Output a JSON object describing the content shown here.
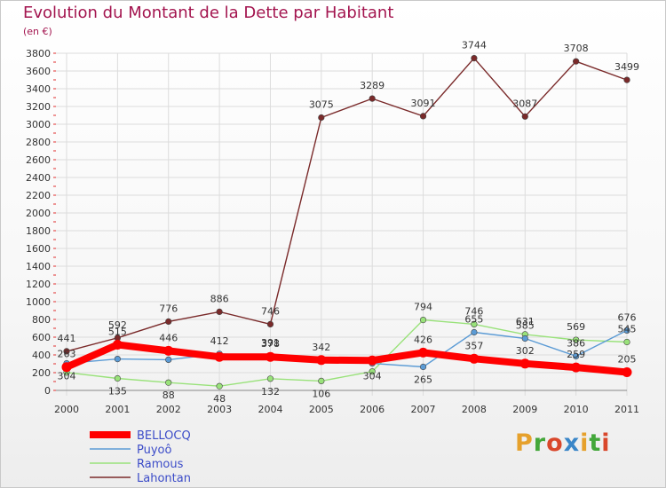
{
  "header": {
    "title": "Evolution du Montant de la Dette par Habitant",
    "subtitle": "(en €)"
  },
  "logo": {
    "text": "Proxiti",
    "colors": [
      "#e6a12c",
      "#43a73a",
      "#d9472b",
      "#3a86c8"
    ]
  },
  "chart_data": {
    "type": "line",
    "title": "Evolution du Montant de la Dette par Habitant",
    "ylabel": "(en €)",
    "xlabel": "",
    "ylim": [
      0,
      3800
    ],
    "ytick_step": 200,
    "grid": true,
    "legend_position": "bottom-left",
    "categories": [
      "2000",
      "2001",
      "2002",
      "2003",
      "2004",
      "2005",
      "2006",
      "2007",
      "2008",
      "2009",
      "2010",
      "2011"
    ],
    "series": [
      {
        "name": "BELLOCQ",
        "color": "#ff0000",
        "values": [
          263,
          515,
          446,
          378,
          378,
          342,
          338,
          426,
          357,
          302,
          259,
          205
        ],
        "labels": [
          "263",
          "515",
          "446",
          "",
          "378",
          "342",
          "",
          "426",
          "357",
          "302",
          "259",
          "205"
        ]
      },
      {
        "name": "Puyoô",
        "color": "#5b9bd5",
        "values": [
          304,
          354,
          346,
          412,
          391,
          334,
          304,
          265,
          655,
          585,
          386,
          676
        ],
        "labels": [
          "304",
          "",
          "",
          "412",
          "391",
          "",
          "304",
          "265",
          "655",
          "585",
          "386",
          "676"
        ]
      },
      {
        "name": "Ramous",
        "color": "#99e27a",
        "values": [
          202,
          135,
          88,
          48,
          132,
          106,
          213,
          794,
          746,
          631,
          569,
          545
        ],
        "labels": [
          "",
          "135",
          "88",
          "48",
          "132",
          "106",
          "",
          "794",
          "746",
          "631",
          "569",
          "545"
        ]
      },
      {
        "name": "Lahontan",
        "color": "#7a2a2a",
        "values": [
          441,
          592,
          776,
          886,
          746,
          3075,
          3289,
          3091,
          3744,
          3087,
          3708,
          3499
        ],
        "labels": [
          "441",
          "592",
          "776",
          "886",
          "746",
          "3075",
          "3289",
          "3091",
          "3744",
          "3087",
          "3708",
          "3499"
        ]
      }
    ]
  }
}
